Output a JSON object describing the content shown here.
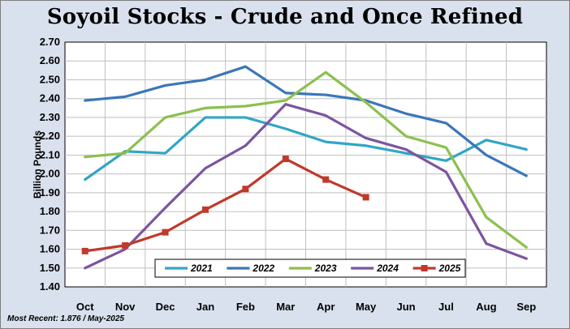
{
  "chart_data": {
    "type": "line",
    "title": "Soyoil Stocks - Crude and Once Refined",
    "ylabel": "Billion Pounds",
    "xlabel": "",
    "categories": [
      "Oct",
      "Nov",
      "Dec",
      "Jan",
      "Feb",
      "Mar",
      "Apr",
      "May",
      "Jun",
      "Jul",
      "Aug",
      "Sep"
    ],
    "ylim": [
      1.4,
      2.7
    ],
    "yticks": [
      "1.40",
      "1.50",
      "1.60",
      "1.70",
      "1.80",
      "1.90",
      "2.00",
      "2.10",
      "2.20",
      "2.30",
      "2.40",
      "2.50",
      "2.60",
      "2.70"
    ],
    "grid": true,
    "legend_position": "bottom-center",
    "series": [
      {
        "name": "2021",
        "color": "#31a6c4",
        "marker": "none",
        "values": [
          1.97,
          2.12,
          2.11,
          2.3,
          2.3,
          2.24,
          2.17,
          2.15,
          2.11,
          2.07,
          2.18,
          2.13
        ]
      },
      {
        "name": "2022",
        "color": "#3b76b8",
        "marker": "none",
        "values": [
          2.39,
          2.41,
          2.47,
          2.5,
          2.57,
          2.43,
          2.42,
          2.39,
          2.32,
          2.27,
          2.1,
          1.99
        ]
      },
      {
        "name": "2023",
        "color": "#8cc04f",
        "marker": "none",
        "values": [
          2.09,
          2.11,
          2.3,
          2.35,
          2.36,
          2.39,
          2.54,
          2.38,
          2.2,
          2.14,
          1.77,
          1.61
        ]
      },
      {
        "name": "2024",
        "color": "#7d54a0",
        "marker": "none",
        "values": [
          1.5,
          1.6,
          1.82,
          2.03,
          2.15,
          2.37,
          2.31,
          2.19,
          2.13,
          2.01,
          1.63,
          1.55
        ]
      },
      {
        "name": "2025",
        "color": "#c0392b",
        "marker": "square",
        "values": [
          1.59,
          1.62,
          1.69,
          1.81,
          1.92,
          2.08,
          1.97,
          1.876,
          null,
          null,
          null,
          null
        ]
      }
    ]
  },
  "footnote": "Most Recent: 1.876 / May-2025"
}
